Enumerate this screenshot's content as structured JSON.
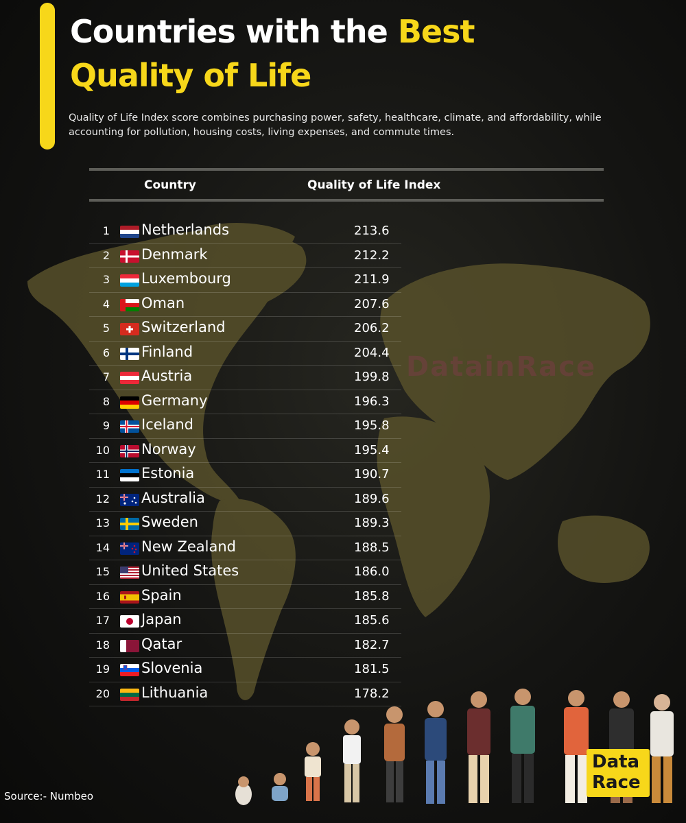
{
  "header": {
    "title_line1_prefix": "Countries with the ",
    "title_line1_highlight": "Best",
    "title_line2": "Quality of Life",
    "subtitle": "Quality of Life Index score combines purchasing power, safety, healthcare, climate, and affordability, while accounting for pollution, housing costs, living expenses, and commute times."
  },
  "table": {
    "col_country": "Country",
    "col_index": "Quality of Life Index"
  },
  "chart_data": {
    "type": "table",
    "title": "Countries with the Best Quality of Life",
    "columns": [
      "Country",
      "Quality of Life Index"
    ],
    "rows": [
      {
        "rank": "1",
        "country": "Netherlands",
        "value": "213.6",
        "flag": "netherlands"
      },
      {
        "rank": "2",
        "country": "Denmark",
        "value": "212.2",
        "flag": "denmark"
      },
      {
        "rank": "3",
        "country": "Luxembourg",
        "value": "211.9",
        "flag": "luxembourg"
      },
      {
        "rank": "4",
        "country": "Oman",
        "value": "207.6",
        "flag": "oman"
      },
      {
        "rank": "5",
        "country": "Switzerland",
        "value": "206.2",
        "flag": "switzerland"
      },
      {
        "rank": "6",
        "country": "Finland",
        "value": "204.4",
        "flag": "finland"
      },
      {
        "rank": "7",
        "country": "Austria",
        "value": "199.8",
        "flag": "austria"
      },
      {
        "rank": "8",
        "country": "Germany",
        "value": "196.3",
        "flag": "germany"
      },
      {
        "rank": "9",
        "country": "Iceland",
        "value": "195.8",
        "flag": "iceland"
      },
      {
        "rank": "10",
        "country": "Norway",
        "value": "195.4",
        "flag": "norway"
      },
      {
        "rank": "11",
        "country": "Estonia",
        "value": "190.7",
        "flag": "estonia"
      },
      {
        "rank": "12",
        "country": "Australia",
        "value": "189.6",
        "flag": "australia"
      },
      {
        "rank": "13",
        "country": "Sweden",
        "value": "189.3",
        "flag": "sweden"
      },
      {
        "rank": "14",
        "country": "New Zealand",
        "value": "188.5",
        "flag": "new-zealand"
      },
      {
        "rank": "15",
        "country": "United States",
        "value": "186.0",
        "flag": "united-states"
      },
      {
        "rank": "16",
        "country": "Spain",
        "value": "185.8",
        "flag": "spain"
      },
      {
        "rank": "17",
        "country": "Japan",
        "value": "185.6",
        "flag": "japan"
      },
      {
        "rank": "18",
        "country": "Qatar",
        "value": "182.7",
        "flag": "qatar"
      },
      {
        "rank": "19",
        "country": "Slovenia",
        "value": "181.5",
        "flag": "slovenia"
      },
      {
        "rank": "20",
        "country": "Lithuania",
        "value": "178.2",
        "flag": "lithuania"
      }
    ]
  },
  "watermark": "DatainRace",
  "logo": {
    "line1": "Data",
    "line2": "Race"
  },
  "footer": {
    "source": "Source:- Numbeo"
  },
  "colors": {
    "accent": "#f7d71a",
    "map": "#57502a",
    "background": "#141412"
  }
}
